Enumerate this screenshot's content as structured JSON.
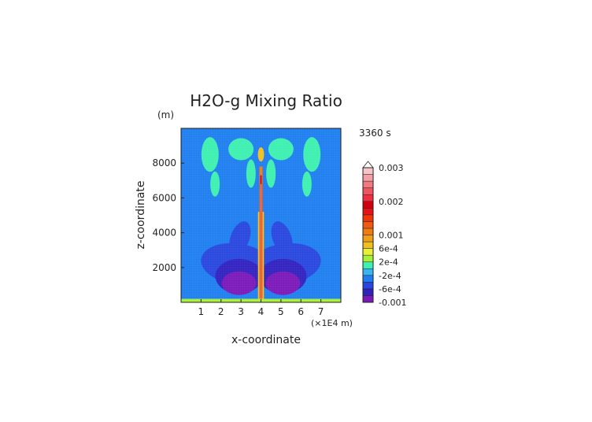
{
  "chart_data": {
    "type": "heatmap",
    "title": "H2O-g Mixing Ratio",
    "time_label": "3360 s",
    "xlabel": "x-coordinate",
    "x_unit": "(×1E4 m)",
    "ylabel": "z-coordinate",
    "y_unit": "(m)",
    "xlim": [
      0,
      8
    ],
    "ylim": [
      0,
      10000
    ],
    "x_ticks": [
      "1",
      "2",
      "3",
      "4",
      "5",
      "6",
      "7"
    ],
    "y_ticks": [
      "2000",
      "4000",
      "6000",
      "8000"
    ],
    "x_tick_values": [
      1,
      2,
      3,
      4,
      5,
      6,
      7
    ],
    "y_tick_values": [
      2000,
      4000,
      6000,
      8000
    ],
    "colorbar": {
      "labels": [
        "0.003",
        "0.002",
        "0.001",
        "6e-4",
        "2e-4",
        "-2e-4",
        "-6e-4",
        "-0.001"
      ],
      "label_values": [
        0.003,
        0.002,
        0.001,
        0.0006,
        0.0002,
        -0.0002,
        -0.0006,
        -0.001
      ],
      "levels": [
        -0.001,
        -0.0008,
        -0.0006,
        -0.0004,
        -0.0002,
        0,
        0.0002,
        0.0004,
        0.0006,
        0.0008,
        0.001,
        0.0012,
        0.0014,
        0.0016,
        0.0018,
        0.002,
        0.0022,
        0.0024,
        0.0026,
        0.0028,
        0.003
      ],
      "colors": [
        "#7a18b8",
        "#3020c0",
        "#2846e0",
        "#1e7ef0",
        "#38b4f0",
        "#3cf0b0",
        "#a8f038",
        "#e6f03a",
        "#f0c020",
        "#f0a018",
        "#f07c10",
        "#f05a10",
        "#f03408",
        "#e81018",
        "#d00010",
        "#f03040",
        "#f05460",
        "#f07a80",
        "#f4a0a8",
        "#f8c4c8"
      ]
    }
  }
}
